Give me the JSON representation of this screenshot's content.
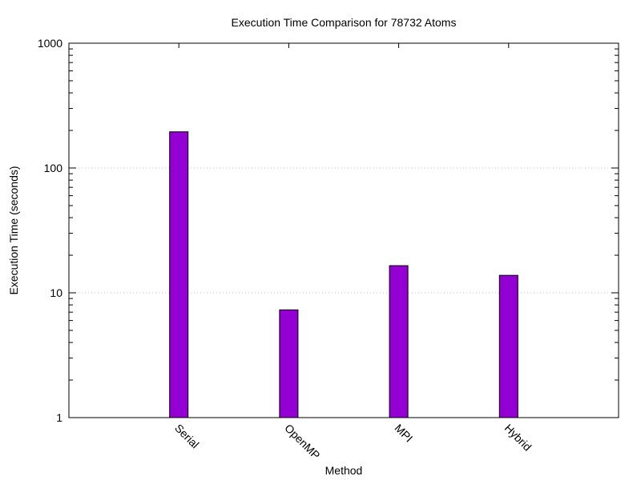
{
  "chart_data": {
    "type": "bar",
    "title": "Execution Time Comparison for 78732 Atoms",
    "xlabel": "Method",
    "ylabel": "Execution Time (seconds)",
    "categories": [
      "Serial",
      "OpenMP",
      "MPI",
      "Hybrid"
    ],
    "values": [
      195,
      7.3,
      16.5,
      13.8
    ],
    "yscale": "log",
    "ylim": [
      1,
      1000
    ],
    "yticks": [
      1,
      10,
      100,
      1000
    ],
    "ytick_labels": [
      "1",
      "10",
      "100",
      "1000"
    ],
    "grid": "horizontal dotted at major ticks",
    "legend": "none",
    "bar_color": "#9400d3"
  }
}
